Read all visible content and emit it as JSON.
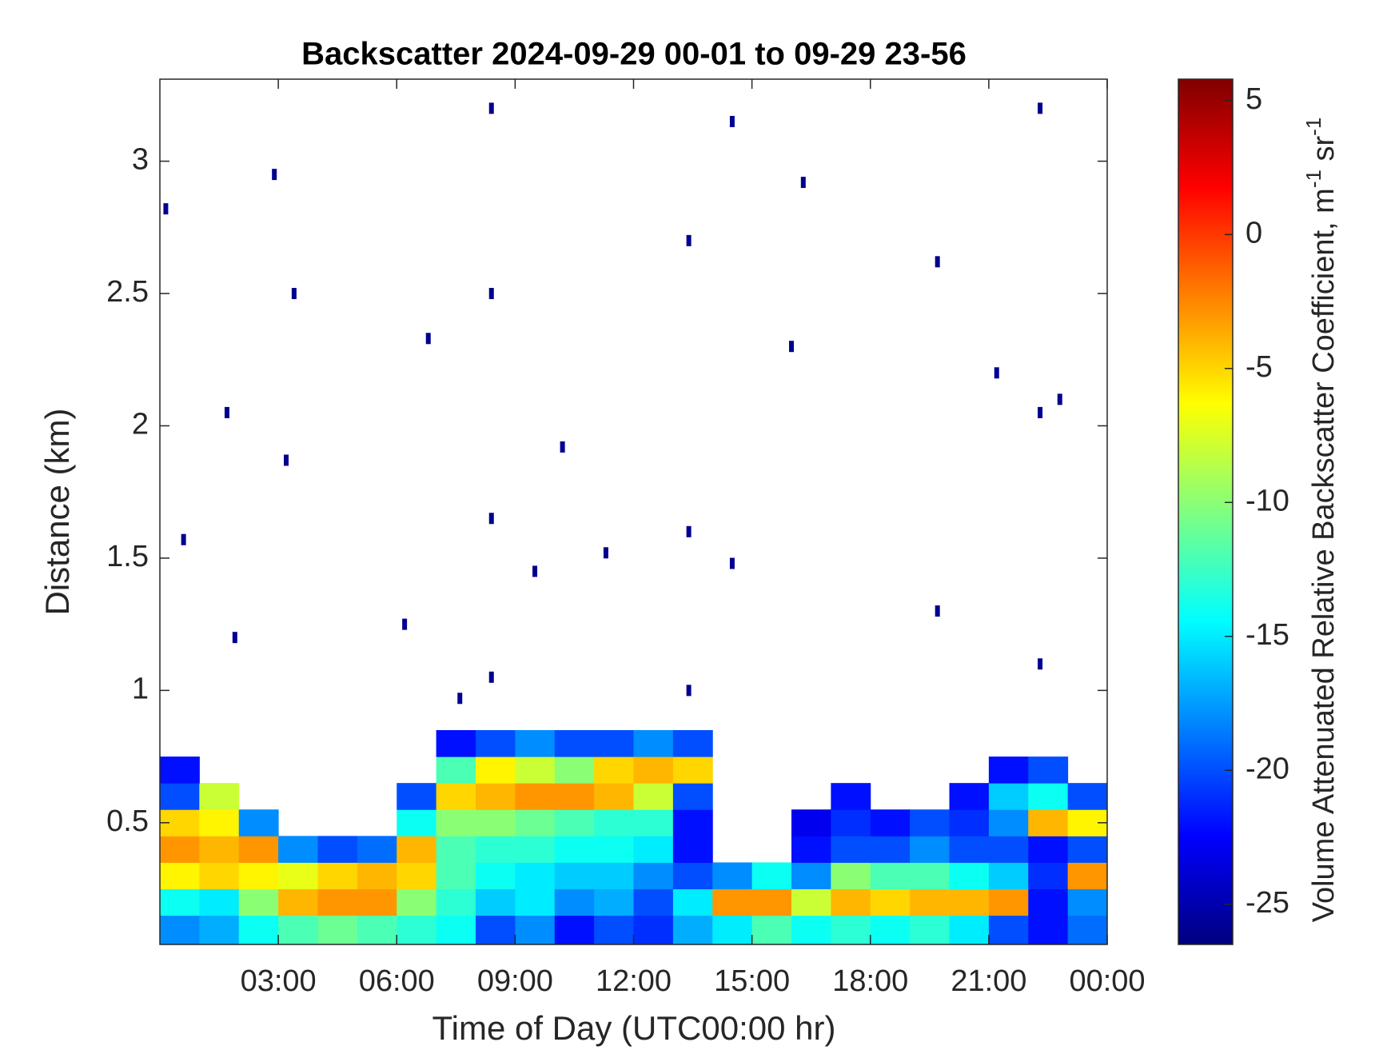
{
  "chart_data": {
    "type": "heatmap",
    "title": "Backscatter 2024-09-29 00-01 to 09-29 23-56",
    "xlabel": "Time of Day (UTC00:00 hr)",
    "ylabel": "Distance (km)",
    "colorbar_label": [
      "Volume Attenuated Relative Backscatter Coefficient, m",
      "-1",
      " sr",
      "-1"
    ],
    "colormap": "jet",
    "xlim": [
      0,
      24
    ],
    "xticks": [
      {
        "value": 3,
        "label": "03:00"
      },
      {
        "value": 6,
        "label": "06:00"
      },
      {
        "value": 9,
        "label": "09:00"
      },
      {
        "value": 12,
        "label": "12:00"
      },
      {
        "value": 15,
        "label": "15:00"
      },
      {
        "value": 18,
        "label": "18:00"
      },
      {
        "value": 21,
        "label": "21:00"
      },
      {
        "value": 24,
        "label": "00:00"
      }
    ],
    "ylim": [
      0.04,
      3.31
    ],
    "yticks": [
      0.5,
      1,
      1.5,
      2,
      2.5,
      3
    ],
    "clim": [
      -26.5,
      5.8
    ],
    "cticks": [
      5,
      0,
      -5,
      -10,
      -15,
      -20,
      -25
    ],
    "xbins": [
      0,
      1,
      2,
      3,
      4,
      5,
      6,
      7,
      8,
      9,
      10,
      11,
      12,
      13,
      14,
      15,
      16,
      17,
      18,
      19,
      20,
      21,
      22,
      23,
      24
    ],
    "ybins": [
      0.04,
      0.15,
      0.25,
      0.35,
      0.45,
      0.55,
      0.65,
      0.75,
      0.85
    ],
    "z": [
      [
        -18,
        -17,
        -14,
        -12,
        -11,
        -12,
        -13,
        -14,
        -20,
        -18,
        -22,
        -20,
        -21,
        -17,
        -15,
        -12,
        -14,
        -13,
        -14,
        -13,
        -15,
        -20,
        -22,
        -19
      ],
      [
        -14,
        -15,
        -10,
        -4,
        -3,
        -3,
        -10,
        -13,
        -16,
        -15,
        -18,
        -17,
        -20,
        -15,
        -3,
        -3,
        -8,
        -4,
        -5,
        -4,
        -4,
        -3,
        -22,
        -18
      ],
      [
        -6,
        -5,
        -6,
        -7,
        -5,
        -4,
        -5,
        -12,
        -14,
        -15,
        -16,
        -16,
        -18,
        -20,
        -18,
        -14,
        -18,
        -10,
        -12,
        -12,
        -14,
        -16,
        -21,
        -3
      ],
      [
        -3,
        -4,
        -3,
        -18,
        -20,
        -19,
        -4,
        -12,
        -13,
        -13,
        -14,
        -14,
        -15,
        -22,
        null,
        null,
        -22,
        -20,
        -20,
        -18,
        -20,
        -20,
        -22,
        -20
      ],
      [
        -5,
        -6,
        -18,
        null,
        null,
        null,
        -14,
        -10,
        -10,
        -11,
        -12,
        -13,
        -13,
        -22,
        null,
        null,
        -23,
        -21,
        -22,
        -20,
        -21,
        -18,
        -4,
        -6
      ],
      [
        -20,
        -8,
        null,
        null,
        null,
        null,
        -20,
        -5,
        -4,
        -3,
        -3,
        -4,
        -8,
        -20,
        null,
        null,
        null,
        -22,
        null,
        null,
        -22,
        -16,
        -14,
        -20
      ],
      [
        -22,
        null,
        null,
        null,
        null,
        null,
        null,
        -12,
        -6,
        -8,
        -10,
        -5,
        -4,
        -5,
        null,
        null,
        null,
        null,
        null,
        null,
        null,
        -22,
        -20,
        null
      ],
      [
        null,
        null,
        null,
        null,
        null,
        null,
        null,
        -22,
        -20,
        -18,
        -20,
        -20,
        -18,
        -20,
        null,
        null,
        null,
        null,
        null,
        null,
        null,
        null,
        null,
        null
      ]
    ],
    "speckles": {
      "x": [
        0.15,
        0.6,
        1.7,
        1.9,
        2.9,
        3.2,
        3.4,
        6.2,
        6.8,
        7.6,
        8.4,
        8.4,
        8.4,
        8.4,
        9.5,
        10.2,
        11.3,
        13.4,
        13.4,
        13.4,
        14.5,
        14.5,
        16,
        16.3,
        19.7,
        19.7,
        21.2,
        22.3,
        22.3,
        22.3,
        22.8
      ],
      "y": [
        2.82,
        1.57,
        2.05,
        1.2,
        2.95,
        1.87,
        2.5,
        1.25,
        2.33,
        0.97,
        3.2,
        2.5,
        1.65,
        1.05,
        1.45,
        1.92,
        1.52,
        2.7,
        1.6,
        1.0,
        3.15,
        1.48,
        2.3,
        2.92,
        2.62,
        1.3,
        2.2,
        3.2,
        2.05,
        1.1,
        2.1
      ],
      "values": [
        -26,
        -26,
        -26,
        -26,
        -26,
        -26,
        -26,
        -26,
        -26,
        -26,
        -26,
        -26,
        -26,
        -26,
        -26,
        -26,
        -26,
        -26,
        -26,
        -26,
        -26,
        -26,
        -26,
        -26,
        -26,
        -26,
        -26,
        -26,
        -26,
        -26,
        -26
      ]
    }
  }
}
